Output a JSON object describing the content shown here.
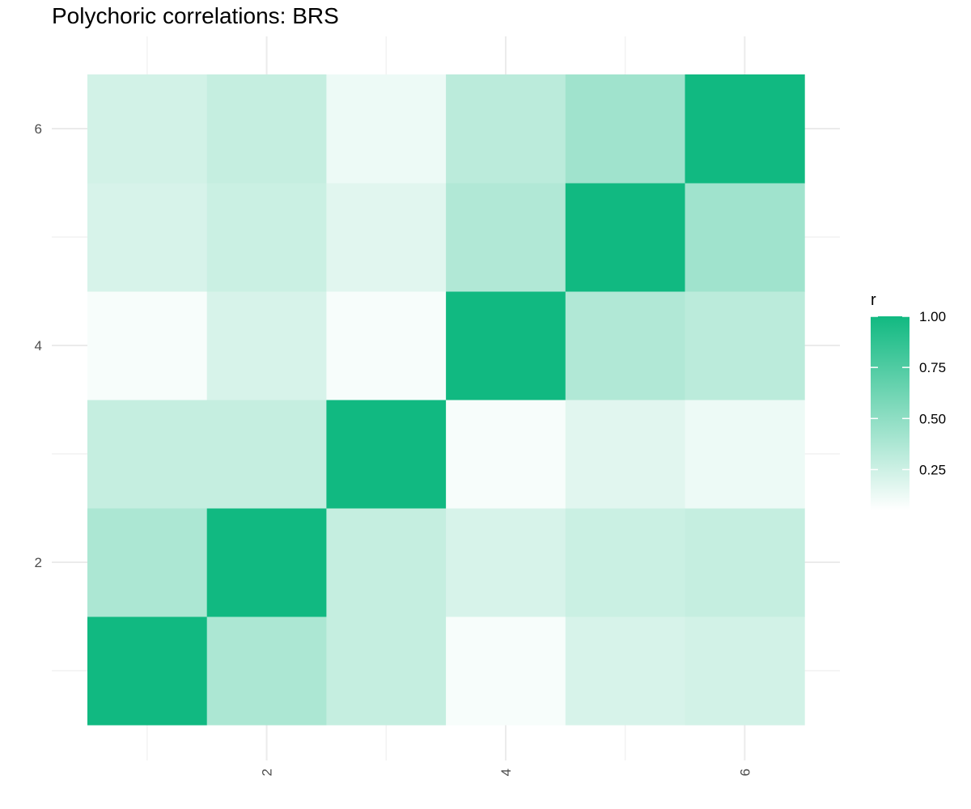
{
  "chart_data": {
    "type": "heatmap",
    "title": "Polychoric correlations: BRS",
    "xlabel": "",
    "ylabel": "",
    "x_categories": [
      1,
      2,
      3,
      4,
      5,
      6
    ],
    "y_categories": [
      1,
      2,
      3,
      4,
      5,
      6
    ],
    "x_tick_labels": [
      "2",
      "4",
      "6"
    ],
    "y_tick_labels": [
      "2",
      "4",
      "6"
    ],
    "matrix": [
      [
        1.0,
        0.38,
        0.28,
        0.08,
        0.21,
        0.23
      ],
      [
        0.38,
        1.0,
        0.28,
        0.21,
        0.26,
        0.28
      ],
      [
        0.28,
        0.28,
        1.0,
        0.08,
        0.17,
        0.12
      ],
      [
        0.08,
        0.21,
        0.08,
        1.0,
        0.36,
        0.32
      ],
      [
        0.21,
        0.26,
        0.17,
        0.36,
        1.0,
        0.43
      ],
      [
        0.23,
        0.28,
        0.12,
        0.32,
        0.43,
        1.0
      ]
    ],
    "color_scale": {
      "low": "#ffffff",
      "high": "#11b981",
      "min": 0.05,
      "max": 1.0
    },
    "legend": {
      "title": "r",
      "ticks": [
        0.25,
        0.5,
        0.75,
        1.0
      ],
      "tick_labels": [
        "0.25",
        "0.50",
        "0.75",
        "1.00"
      ],
      "position": "right"
    },
    "grid": true
  }
}
